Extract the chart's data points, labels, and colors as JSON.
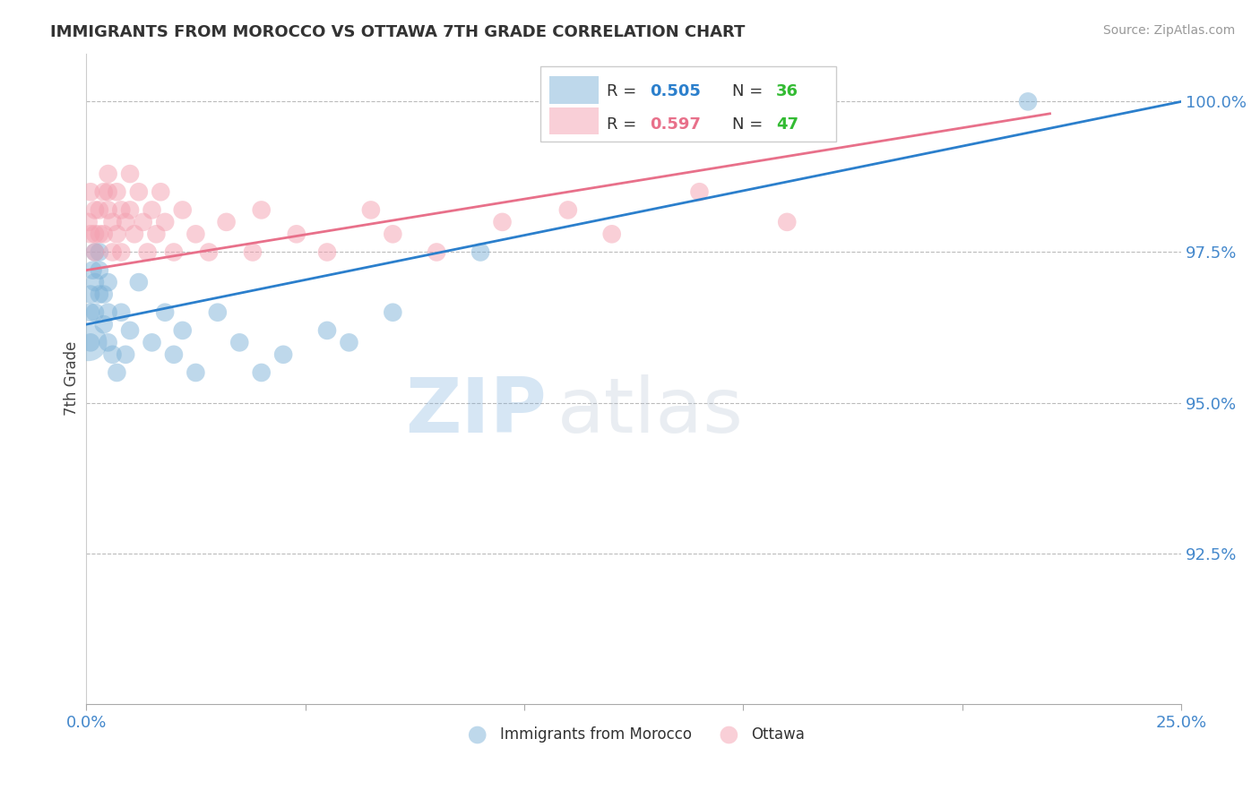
{
  "title": "IMMIGRANTS FROM MOROCCO VS OTTAWA 7TH GRADE CORRELATION CHART",
  "source": "Source: ZipAtlas.com",
  "xlabel_blue": "Immigrants from Morocco",
  "xlabel_pink": "Ottawa",
  "ylabel": "7th Grade",
  "xlim": [
    0.0,
    0.25
  ],
  "ylim": [
    0.9,
    1.008
  ],
  "xticks": [
    0.0,
    0.05,
    0.1,
    0.15,
    0.2,
    0.25
  ],
  "xtick_labels": [
    "0.0%",
    "",
    "",
    "",
    "",
    "25.0%"
  ],
  "yticks": [
    0.925,
    0.95,
    0.975,
    1.0
  ],
  "ytick_labels": [
    "92.5%",
    "95.0%",
    "97.5%",
    "100.0%"
  ],
  "blue_color": "#7EB3D8",
  "pink_color": "#F4A0B0",
  "blue_line_color": "#2B7FCC",
  "pink_line_color": "#E8708A",
  "R_blue": 0.505,
  "N_blue": 36,
  "R_pink": 0.597,
  "N_pink": 47,
  "blue_x": [
    0.0005,
    0.001,
    0.001,
    0.001,
    0.0015,
    0.002,
    0.002,
    0.002,
    0.003,
    0.003,
    0.003,
    0.004,
    0.004,
    0.005,
    0.005,
    0.005,
    0.006,
    0.007,
    0.008,
    0.009,
    0.01,
    0.012,
    0.015,
    0.018,
    0.02,
    0.022,
    0.025,
    0.03,
    0.035,
    0.04,
    0.045,
    0.055,
    0.06,
    0.07,
    0.09,
    0.215
  ],
  "blue_y": [
    0.963,
    0.968,
    0.965,
    0.96,
    0.972,
    0.975,
    0.97,
    0.965,
    0.968,
    0.972,
    0.975,
    0.968,
    0.963,
    0.97,
    0.965,
    0.96,
    0.958,
    0.955,
    0.965,
    0.958,
    0.962,
    0.97,
    0.96,
    0.965,
    0.958,
    0.962,
    0.955,
    0.965,
    0.96,
    0.955,
    0.958,
    0.962,
    0.96,
    0.965,
    0.975,
    1.0
  ],
  "blue_sizes_large": [
    0
  ],
  "blue_large_x": [
    0.0005
  ],
  "blue_large_y": [
    0.96
  ],
  "pink_x": [
    0.0005,
    0.001,
    0.001,
    0.002,
    0.002,
    0.002,
    0.003,
    0.003,
    0.004,
    0.004,
    0.005,
    0.005,
    0.005,
    0.006,
    0.006,
    0.007,
    0.007,
    0.008,
    0.008,
    0.009,
    0.01,
    0.01,
    0.011,
    0.012,
    0.013,
    0.014,
    0.015,
    0.016,
    0.017,
    0.018,
    0.02,
    0.022,
    0.025,
    0.028,
    0.032,
    0.038,
    0.04,
    0.048,
    0.055,
    0.065,
    0.07,
    0.08,
    0.095,
    0.11,
    0.12,
    0.14,
    0.16
  ],
  "pink_y": [
    0.98,
    0.985,
    0.978,
    0.982,
    0.978,
    0.975,
    0.982,
    0.978,
    0.985,
    0.978,
    0.982,
    0.988,
    0.985,
    0.98,
    0.975,
    0.985,
    0.978,
    0.982,
    0.975,
    0.98,
    0.988,
    0.982,
    0.978,
    0.985,
    0.98,
    0.975,
    0.982,
    0.978,
    0.985,
    0.98,
    0.975,
    0.982,
    0.978,
    0.975,
    0.98,
    0.975,
    0.982,
    0.978,
    0.975,
    0.982,
    0.978,
    0.975,
    0.98,
    0.982,
    0.978,
    0.985,
    0.98
  ],
  "watermark_zip": "ZIP",
  "watermark_atlas": "atlas",
  "background_color": "#FFFFFF",
  "grid_color": "#BBBBBB",
  "axis_label_color": "#4488CC",
  "title_color": "#333333"
}
